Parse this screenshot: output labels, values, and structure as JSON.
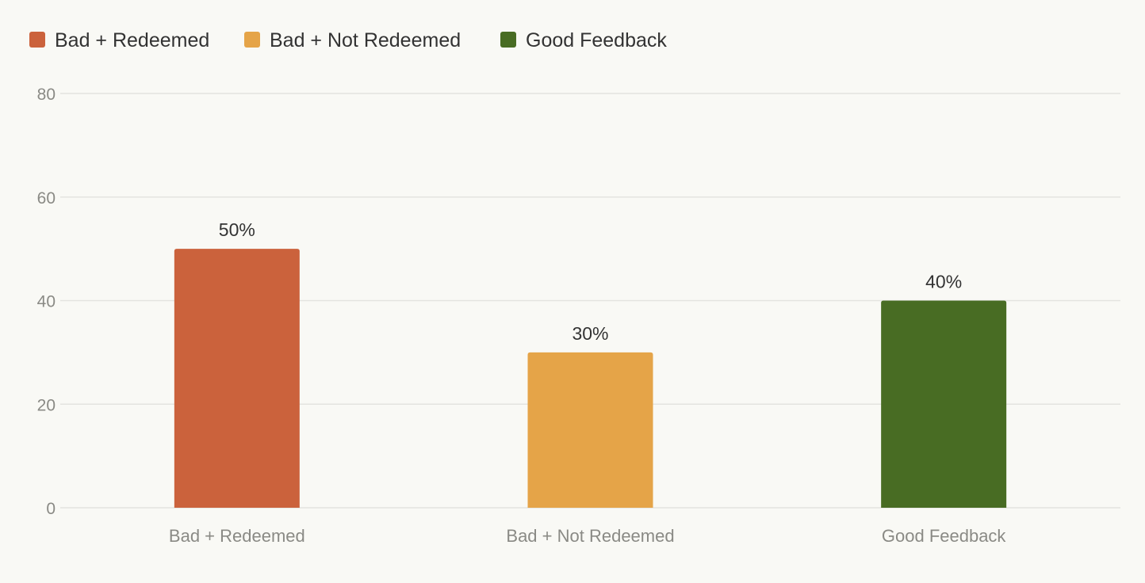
{
  "chart_data": {
    "type": "bar",
    "categories": [
      "Bad + Redeemed",
      "Bad + Not Redeemed",
      "Good Feedback"
    ],
    "values": [
      50,
      30,
      40
    ],
    "value_labels": [
      "50%",
      "30%",
      "40%"
    ],
    "colors": [
      "#cb623c",
      "#e5a448",
      "#486c23"
    ],
    "legend": {
      "placement": "top-left",
      "items": [
        "Bad + Redeemed",
        "Bad + Not Redeemed",
        "Good Feedback"
      ]
    },
    "y_ticks": [
      0,
      20,
      40,
      60,
      80
    ],
    "ylim": [
      0,
      80
    ],
    "grid": true,
    "title": "",
    "xlabel": "",
    "ylabel": ""
  }
}
